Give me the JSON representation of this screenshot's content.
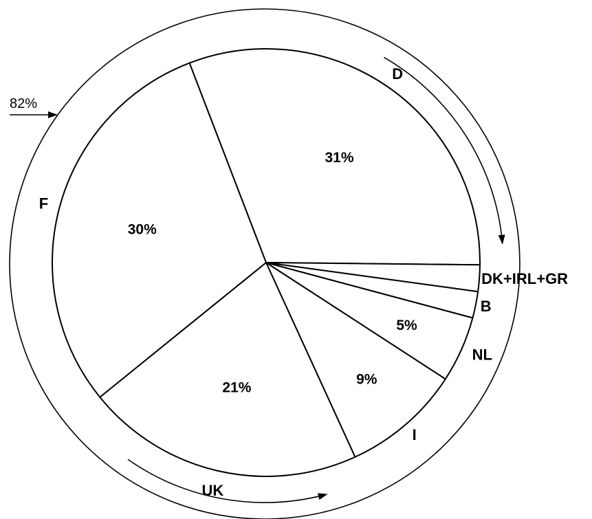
{
  "chart_data": {
    "type": "pie",
    "title": "",
    "slices": [
      {
        "label": "D",
        "value": 31,
        "value_label": "31%"
      },
      {
        "label": "DK+IRL+GR",
        "value": 2,
        "value_label": ""
      },
      {
        "label": "B",
        "value": 2,
        "value_label": ""
      },
      {
        "label": "NL",
        "value": 5,
        "value_label": "5%"
      },
      {
        "label": "I",
        "value": 9,
        "value_label": "9%"
      },
      {
        "label": "UK",
        "value": 21,
        "value_label": "21%"
      },
      {
        "label": "F",
        "value": 30,
        "value_label": "30%"
      }
    ],
    "annotation": {
      "text": "82%",
      "note": "arc spanning D, F and UK"
    },
    "colors": {
      "fill": "#ffffff",
      "stroke": "#000000"
    }
  }
}
